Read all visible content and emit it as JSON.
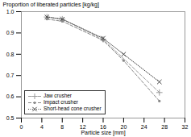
{
  "chart_data": {
    "type": "line",
    "xlabel": "Particle size [mm]",
    "ylabel": "Proportion of liberated particles [kg/kg]",
    "xlim": [
      0,
      32
    ],
    "ylim": [
      0.5,
      1.0
    ],
    "xticks": [
      0,
      4,
      8,
      12,
      16,
      20,
      24,
      28,
      32
    ],
    "yticks": [
      0.5,
      0.6,
      0.7,
      0.8,
      0.9,
      {
        "value": 1.0,
        "label": "1.0"
      }
    ],
    "grid": false,
    "legend": "lower left",
    "series": [
      {
        "name": "Jaw crusher",
        "color": "#999999",
        "marker": "plus",
        "line_style": "dashed",
        "x": [
          5,
          8,
          16,
          27
        ],
        "values": [
          0.975,
          0.965,
          0.87,
          0.62
        ]
      },
      {
        "name": "Impact crusher",
        "color": "#888888",
        "marker": "point",
        "line_style": "dashed",
        "x": [
          5,
          8,
          16,
          20,
          27
        ],
        "values": [
          0.965,
          0.955,
          0.865,
          0.77,
          0.58
        ]
      },
      {
        "name": "Short-head cone crusher",
        "color": "#444444",
        "marker": "x",
        "line_style": "dotted",
        "x": [
          5,
          8,
          16,
          20,
          27
        ],
        "values": [
          0.975,
          0.965,
          0.875,
          0.8,
          0.67
        ]
      }
    ]
  }
}
